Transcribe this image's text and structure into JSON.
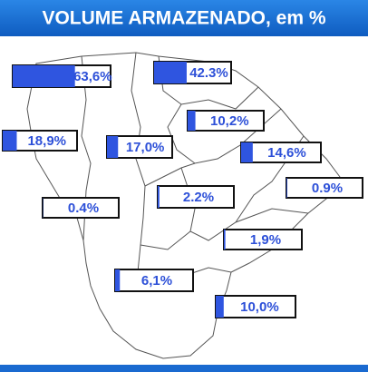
{
  "title": "VOLUME ARMAZENADO, em %",
  "xlim": [
    0,
    100
  ],
  "gauges": [
    {
      "value": 63.6,
      "label": "63,6%"
    },
    {
      "value": 42.3,
      "label": "42.3%"
    },
    {
      "value": 10.2,
      "label": "10,2%"
    },
    {
      "value": 18.9,
      "label": "18,9%"
    },
    {
      "value": 17.0,
      "label": "17,0%"
    },
    {
      "value": 14.6,
      "label": "14,6%"
    },
    {
      "value": 0.9,
      "label": "0.9%"
    },
    {
      "value": 0.4,
      "label": "0.4%"
    },
    {
      "value": 2.2,
      "label": "2.2%"
    },
    {
      "value": 1.9,
      "label": "1,9%"
    },
    {
      "value": 6.1,
      "label": "6,1%"
    },
    {
      "value": 10.0,
      "label": "10,0%"
    }
  ]
}
